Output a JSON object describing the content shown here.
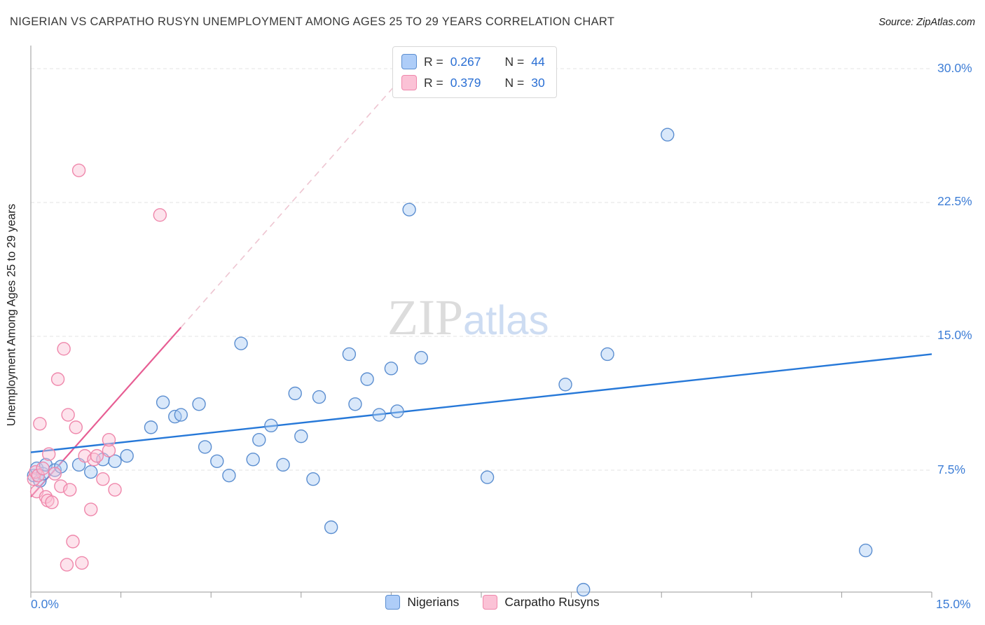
{
  "header": {
    "title": "NIGERIAN VS CARPATHO RUSYN UNEMPLOYMENT AMONG AGES 25 TO 29 YEARS CORRELATION CHART",
    "source": "Source: ZipAtlas.com"
  },
  "watermark": {
    "part1": "ZIP",
    "part2": "atlas"
  },
  "axes": {
    "y_label": "Unemployment Among Ages 25 to 29 years",
    "y_ticks": [
      "30.0%",
      "22.5%",
      "15.0%",
      "7.5%"
    ],
    "x_min_label": "0.0%",
    "x_max_label": "15.0%"
  },
  "legend_box": {
    "rows": [
      {
        "r_text": "R = ",
        "r_value": "0.267",
        "n_text": "N = ",
        "n_value": "44"
      },
      {
        "r_text": "R = ",
        "r_value": "0.379",
        "n_text": "N = ",
        "n_value": "30"
      }
    ]
  },
  "bottom_legend": {
    "items": [
      {
        "label": "Nigerians"
      },
      {
        "label": "Carpatho Rusyns"
      }
    ]
  },
  "chart_data": {
    "type": "scatter",
    "title": "Nigerian vs Carpatho Rusyn Unemployment Among Ages 25 to 29 Years Correlation Chart",
    "xlabel": "",
    "ylabel": "Unemployment Among Ages 25 to 29 years",
    "xlim": [
      0,
      15
    ],
    "ylim": [
      0,
      31.5
    ],
    "grid_y_values": [
      7.5,
      15,
      22.5,
      30
    ],
    "grid": true,
    "legend_position": "top-center",
    "series": [
      {
        "name": "Nigerians",
        "color": "#5b8ed0",
        "fill": "#aaccf5",
        "r": 0.267,
        "n": 44,
        "trend": {
          "x1": 0,
          "y1": 8.5,
          "x2": 15,
          "y2": 14.0
        },
        "points": [
          [
            0.05,
            7.2
          ],
          [
            0.1,
            7.6
          ],
          [
            0.15,
            6.9
          ],
          [
            0.2,
            7.3
          ],
          [
            0.25,
            7.8
          ],
          [
            0.4,
            7.5
          ],
          [
            0.5,
            7.7
          ],
          [
            0.8,
            7.8
          ],
          [
            1.0,
            7.4
          ],
          [
            1.2,
            8.1
          ],
          [
            1.4,
            8.0
          ],
          [
            1.6,
            8.3
          ],
          [
            2.0,
            9.9
          ],
          [
            2.2,
            11.3
          ],
          [
            2.4,
            10.5
          ],
          [
            2.5,
            10.6
          ],
          [
            2.8,
            11.2
          ],
          [
            2.9,
            8.8
          ],
          [
            3.1,
            8.0
          ],
          [
            3.3,
            7.2
          ],
          [
            3.5,
            14.6
          ],
          [
            3.7,
            8.1
          ],
          [
            3.8,
            9.2
          ],
          [
            4.0,
            10.0
          ],
          [
            4.2,
            7.8
          ],
          [
            4.4,
            11.8
          ],
          [
            4.5,
            9.4
          ],
          [
            4.7,
            7.0
          ],
          [
            4.8,
            11.6
          ],
          [
            5.0,
            4.3
          ],
          [
            5.3,
            14.0
          ],
          [
            5.4,
            11.2
          ],
          [
            5.6,
            12.6
          ],
          [
            5.8,
            10.6
          ],
          [
            6.0,
            13.2
          ],
          [
            6.1,
            10.8
          ],
          [
            6.3,
            22.1
          ],
          [
            6.5,
            13.8
          ],
          [
            7.6,
            7.1
          ],
          [
            8.9,
            12.3
          ],
          [
            9.2,
            0.8
          ],
          [
            9.6,
            14.0
          ],
          [
            10.6,
            26.3
          ],
          [
            13.9,
            3.0
          ]
        ]
      },
      {
        "name": "Carpatho Rusyns",
        "color": "#ef87ab",
        "fill": "#fbc0d4",
        "r": 0.379,
        "n": 30,
        "trend": {
          "x1": 0,
          "y1": 6.0,
          "x2": 2.5,
          "y2": 15.5,
          "dash_x2": 6.6,
          "dash_y2": 31.1
        },
        "points": [
          [
            0.05,
            7.0
          ],
          [
            0.08,
            7.4
          ],
          [
            0.1,
            6.3
          ],
          [
            0.12,
            7.2
          ],
          [
            0.15,
            10.1
          ],
          [
            0.2,
            7.6
          ],
          [
            0.25,
            6.0
          ],
          [
            0.28,
            5.8
          ],
          [
            0.3,
            8.4
          ],
          [
            0.35,
            5.7
          ],
          [
            0.4,
            7.3
          ],
          [
            0.45,
            12.6
          ],
          [
            0.5,
            6.6
          ],
          [
            0.55,
            14.3
          ],
          [
            0.6,
            2.2
          ],
          [
            0.62,
            10.6
          ],
          [
            0.65,
            6.4
          ],
          [
            0.7,
            3.5
          ],
          [
            0.75,
            9.9
          ],
          [
            0.8,
            24.3
          ],
          [
            0.85,
            2.3
          ],
          [
            0.9,
            8.3
          ],
          [
            1.0,
            5.3
          ],
          [
            1.05,
            8.1
          ],
          [
            1.1,
            8.3
          ],
          [
            1.2,
            7.0
          ],
          [
            1.3,
            8.6
          ],
          [
            1.3,
            9.2
          ],
          [
            1.4,
            6.4
          ],
          [
            2.15,
            21.8
          ]
        ]
      }
    ]
  }
}
